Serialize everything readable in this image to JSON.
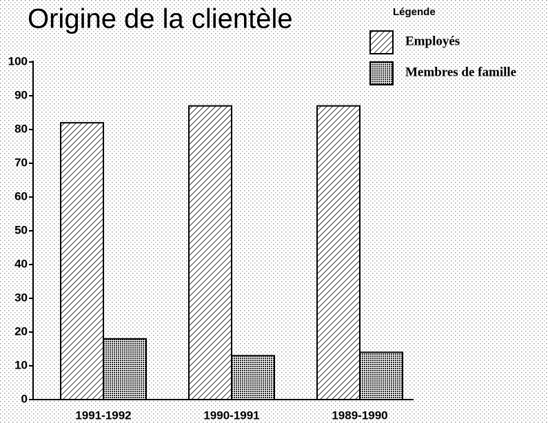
{
  "chart_data": {
    "type": "bar",
    "title": "Origine de la clientèle",
    "legend_title": "Légende",
    "categories": [
      "1991-1992",
      "1990-1991",
      "1989-1990"
    ],
    "series": [
      {
        "name": "Employés",
        "color": "#000000",
        "values": [
          82,
          87,
          87
        ]
      },
      {
        "name": "Membres de famille",
        "color": "#000000",
        "values": [
          18,
          13,
          14
        ]
      }
    ],
    "ylim": [
      0,
      100
    ],
    "yticks": [
      0,
      10,
      20,
      30,
      40,
      50,
      60,
      70,
      80,
      90,
      100
    ],
    "grid": false,
    "legend": "upper right"
  }
}
